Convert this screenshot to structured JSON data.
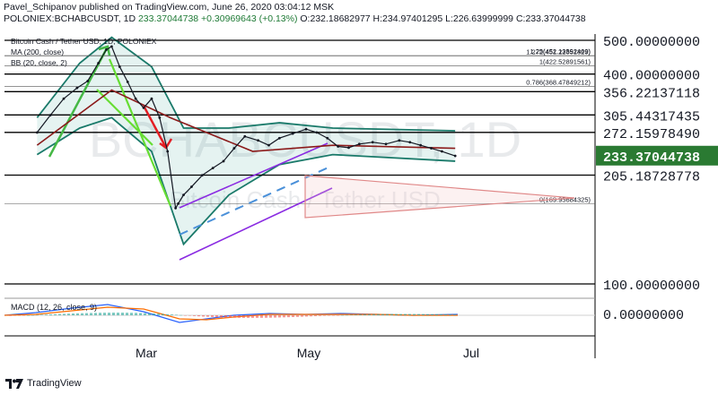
{
  "header": {
    "line1": "Pavel_Schipanov published on TradingView.com, June 26, 2020 03:04:12 MSK",
    "symbol": "POLONIEX:BCHABCUSDT, 1D",
    "price": "233.37044738",
    "change": "+0.30969643 (+0.13%)",
    "ohlc": "O:232.18682977 H:234.97401295 L:226.63999999 C:233.37044738"
  },
  "footer": {
    "brand": "TradingView"
  },
  "chart_data": {
    "type": "line",
    "title": "Bitcoin Cash / Tether USD, 1D, POLONIEX",
    "watermark": "BCHABCUSDT, 1D",
    "watermark_sub": "Bitcoin Cash / Tether USD",
    "scale": "log",
    "ylim": [
      90,
      510
    ],
    "x_ticks": [
      {
        "label": "Mar",
        "date": "2020-03-01"
      },
      {
        "label": "May",
        "date": "2020-05-01"
      },
      {
        "label": "Jul",
        "date": "2020-07-01"
      }
    ],
    "indicator_labels": [
      "MA (200, close)",
      "BB (20, close, 2)"
    ],
    "horizontal_levels": [
      500.0,
      400.0,
      356.22137118,
      305.44317435,
      272.1597849,
      205.18728778,
      100.0
    ],
    "price_axis_labels": [
      "500.00000000",
      "400.00000000",
      "356.22137118",
      "305.44317435",
      "272.15978490",
      "205.18728778",
      "100.00000000"
    ],
    "last_price": {
      "label": "233.37044738",
      "value": 233.37044738,
      "color": "#2a7a32"
    },
    "fib_levels": [
      {
        "label": "1.272(451.22851329)",
        "value": 451.22851329
      },
      {
        "label": "1.25(452.13592469)",
        "value": 452.13592469
      },
      {
        "label": "1(422.52891561)",
        "value": 422.52891561
      },
      {
        "label": "0.786(368.47849212)",
        "value": 368.47849212
      },
      {
        "label": "0(169.95684325)",
        "value": 169.95684325
      }
    ],
    "series": [
      {
        "name": "Close",
        "color": "#131722",
        "x": [
          "2020-01-20",
          "2020-01-25",
          "2020-01-30",
          "2020-02-04",
          "2020-02-08",
          "2020-02-12",
          "2020-02-15",
          "2020-02-17",
          "2020-02-20",
          "2020-02-23",
          "2020-02-26",
          "2020-02-29",
          "2020-03-03",
          "2020-03-06",
          "2020-03-09",
          "2020-03-12",
          "2020-03-13",
          "2020-03-15",
          "2020-03-18",
          "2020-03-22",
          "2020-03-26",
          "2020-03-30",
          "2020-04-03",
          "2020-04-07",
          "2020-04-12",
          "2020-04-16",
          "2020-04-20",
          "2020-04-25",
          "2020-04-30",
          "2020-05-04",
          "2020-05-08",
          "2020-05-12",
          "2020-05-16",
          "2020-05-20",
          "2020-05-25",
          "2020-05-30",
          "2020-06-04",
          "2020-06-08",
          "2020-06-12",
          "2020-06-16",
          "2020-06-20",
          "2020-06-25"
        ],
        "y": [
          272,
          305,
          340,
          365,
          382,
          430,
          470,
          480,
          420,
          380,
          340,
          320,
          340,
          300,
          240,
          165,
          170,
          180,
          190,
          205,
          215,
          225,
          245,
          265,
          258,
          250,
          262,
          270,
          278,
          272,
          262,
          248,
          246,
          252,
          255,
          252,
          258,
          255,
          250,
          245,
          240,
          233
        ]
      },
      {
        "name": "MA (200, close)",
        "color": "#8b1a1a",
        "x": [
          "2020-01-20",
          "2020-02-17",
          "2020-03-10",
          "2020-04-10",
          "2020-05-10",
          "2020-06-25"
        ],
        "y": [
          250,
          360,
          300,
          240,
          250,
          245
        ]
      },
      {
        "name": "BB upper",
        "color": "#1a7a6a",
        "x": [
          "2020-01-20",
          "2020-02-05",
          "2020-02-17",
          "2020-03-03",
          "2020-03-15",
          "2020-04-01",
          "2020-04-20",
          "2020-05-10",
          "2020-06-25"
        ],
        "y": [
          300,
          430,
          510,
          420,
          280,
          280,
          290,
          280,
          275
        ]
      },
      {
        "name": "BB lower",
        "color": "#1a7a6a",
        "x": [
          "2020-01-20",
          "2020-02-05",
          "2020-02-17",
          "2020-03-03",
          "2020-03-15",
          "2020-04-01",
          "2020-04-20",
          "2020-05-10",
          "2020-06-25"
        ],
        "y": [
          235,
          280,
          300,
          240,
          130,
          180,
          220,
          235,
          225
        ]
      }
    ],
    "macd": {
      "label": "MACD (12, 26, close, 9)",
      "zero_label": "0.00000000"
    }
  }
}
